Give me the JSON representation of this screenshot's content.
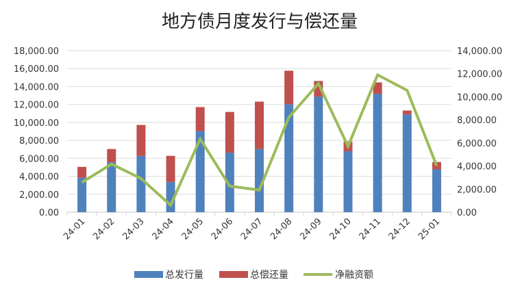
{
  "chart_data": {
    "type": "bar",
    "title": "地方债月度发行与偿还量",
    "categories": [
      "24-01",
      "24-02",
      "24-03",
      "24-04",
      "24-05",
      "24-06",
      "24-07",
      "24-08",
      "24-09",
      "24-10",
      "24-11",
      "24-12",
      "25-01"
    ],
    "series": [
      {
        "name": "总发行量",
        "type": "bar",
        "axis": "left",
        "color": "#4f81bd",
        "values": [
          3830,
          5560,
          6280,
          3370,
          9030,
          6630,
          7040,
          12020,
          12880,
          6790,
          13190,
          10890,
          4770
        ]
      },
      {
        "name": "总偿还量",
        "type": "bar",
        "axis": "left",
        "color": "#c0504d",
        "values": [
          1220,
          1480,
          3440,
          2910,
          2680,
          4540,
          5280,
          3750,
          1740,
          1090,
          1270,
          440,
          820
        ]
      },
      {
        "name": "净融资额",
        "type": "line",
        "axis": "right",
        "color": "#9bbb59",
        "values": [
          2580,
          4170,
          2920,
          600,
          6350,
          2260,
          1920,
          8230,
          11150,
          5710,
          11900,
          10560,
          4010
        ]
      }
    ],
    "y_left": {
      "range": [
        0,
        18000
      ],
      "ticks": [
        "0.00",
        "2,000.00",
        "4,000.00",
        "6,000.00",
        "8,000.00",
        "10,000.00",
        "12,000.00",
        "14,000.00",
        "16,000.00",
        "18,000.00"
      ]
    },
    "y_right": {
      "range": [
        0,
        14000
      ],
      "ticks": [
        "0.00",
        "2,000.00",
        "4,000.00",
        "6,000.00",
        "8,000.00",
        "10,000.00",
        "12,000.00",
        "14,000.00"
      ]
    },
    "grid": true,
    "legend": "bottom",
    "stacked": true
  }
}
